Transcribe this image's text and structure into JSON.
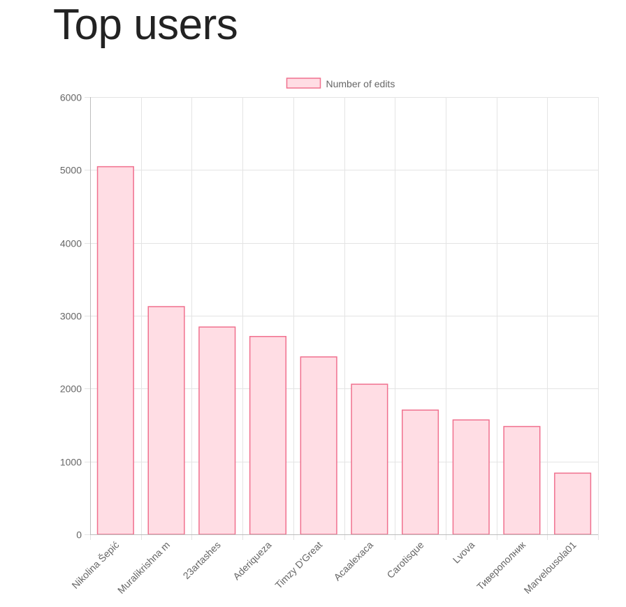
{
  "page": {
    "title": "Top users"
  },
  "chart_data": {
    "type": "bar",
    "legend": {
      "position": "top",
      "entries": [
        "Number of edits"
      ]
    },
    "categories": [
      "Nikolina Šepić",
      "Muralikrishna m",
      "23artashes",
      "Aderiqueza",
      "Timzy D'Great",
      "Acaalexaca",
      "Carotisque",
      "Lvova",
      "Тиверополник",
      "Marvelousola01"
    ],
    "series": [
      {
        "name": "Number of edits",
        "values": [
          5045,
          3125,
          2845,
          2715,
          2435,
          2060,
          1705,
          1570,
          1480,
          840
        ],
        "fill_color": "#ffdde4",
        "border_color": "#f0708e"
      }
    ],
    "ylim": [
      0,
      6000
    ],
    "yticks": [
      0,
      1000,
      2000,
      3000,
      4000,
      5000,
      6000
    ],
    "grid": true,
    "xlabel": "",
    "ylabel": ""
  }
}
